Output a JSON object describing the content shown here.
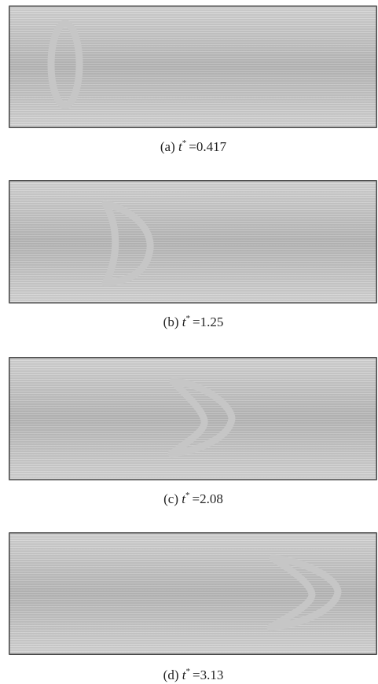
{
  "panels": [
    {
      "label": "(a)",
      "var": "t",
      "sup": "*",
      "rest": "=0.417"
    },
    {
      "label": "(b)",
      "var": "t",
      "sup": "*",
      "rest": "=1.25"
    },
    {
      "label": "(c)",
      "var": "t",
      "sup": "*",
      "rest": "=2.08"
    },
    {
      "label": "(d)",
      "var": "t",
      "sup": "*",
      "rest": "=3.13"
    }
  ]
}
